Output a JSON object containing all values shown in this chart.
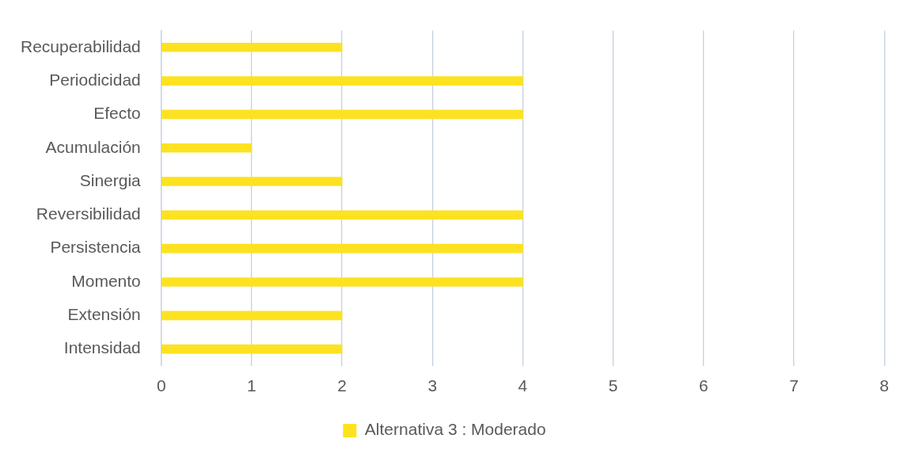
{
  "chart_data": {
    "type": "bar",
    "orientation": "horizontal",
    "categories": [
      "Recuperabilidad",
      "Periodicidad",
      "Efecto",
      "Acumulación",
      "Sinergia",
      "Reversibilidad",
      "Persistencia",
      "Momento",
      "Extensión",
      "Intensidad"
    ],
    "series": [
      {
        "name": "Alternativa 3 : Moderado",
        "color": "#fce221",
        "values": [
          2,
          4,
          4,
          1,
          2,
          4,
          4,
          4,
          2,
          2
        ]
      }
    ],
    "xlim": [
      0,
      8
    ],
    "xticks": [
      0,
      1,
      2,
      3,
      4,
      5,
      6,
      7,
      8
    ],
    "grid": "x",
    "legend": "bottom"
  }
}
